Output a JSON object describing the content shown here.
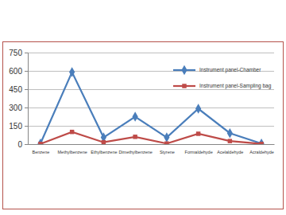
{
  "chart_data": {
    "type": "line",
    "categories": [
      "Benzene",
      "Methylbenzene",
      "Ethylbenzene",
      "Dimethylbenzene",
      "Styrene",
      "Formaldehyde",
      "Acelaldehyde",
      "Acraldehyde"
    ],
    "series": [
      {
        "name": "Instrument panel-Chamber",
        "color": "#4a7ebb",
        "marker": "diamond",
        "line_style": "solid",
        "values": [
          5,
          590,
          55,
          225,
          55,
          290,
          90,
          5
        ]
      },
      {
        "name": "Instrument panel-Sampling bag",
        "color": "#be4b48",
        "marker": "square",
        "line_style": "solid",
        "values": [
          2,
          100,
          15,
          60,
          5,
          85,
          25,
          2
        ]
      }
    ],
    "ylim": [
      0,
      750
    ],
    "yticks": [
      0,
      150,
      300,
      450,
      600,
      750
    ],
    "grid": true,
    "legend": "upper right"
  }
}
